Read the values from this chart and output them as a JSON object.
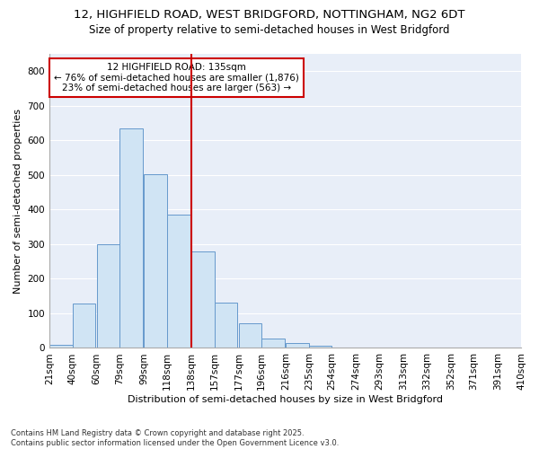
{
  "title_line1": "12, HIGHFIELD ROAD, WEST BRIDGFORD, NOTTINGHAM, NG2 6DT",
  "title_line2": "Size of property relative to semi-detached houses in West Bridgford",
  "xlabel": "Distribution of semi-detached houses by size in West Bridgford",
  "ylabel": "Number of semi-detached properties",
  "footnote": "Contains HM Land Registry data © Crown copyright and database right 2025.\nContains public sector information licensed under the Open Government Licence v3.0.",
  "bar_left_edges": [
    21,
    40,
    60,
    79,
    99,
    118,
    138,
    157,
    177,
    196,
    216,
    235,
    254,
    274,
    293,
    313,
    332,
    352,
    371,
    391
  ],
  "bar_heights": [
    10,
    128,
    300,
    635,
    503,
    385,
    278,
    130,
    72,
    28,
    13,
    7,
    0,
    0,
    0,
    0,
    0,
    0,
    0,
    0
  ],
  "bin_width": 19,
  "bar_color": "#d0e4f4",
  "bar_edge_color": "#6699cc",
  "x_tick_labels": [
    "21sqm",
    "40sqm",
    "60sqm",
    "79sqm",
    "99sqm",
    "118sqm",
    "138sqm",
    "157sqm",
    "177sqm",
    "196sqm",
    "216sqm",
    "235sqm",
    "254sqm",
    "274sqm",
    "293sqm",
    "313sqm",
    "332sqm",
    "352sqm",
    "371sqm",
    "391sqm",
    "410sqm"
  ],
  "x_tick_positions": [
    21,
    40,
    60,
    79,
    99,
    118,
    138,
    157,
    177,
    196,
    216,
    235,
    254,
    274,
    293,
    313,
    332,
    352,
    371,
    391,
    410
  ],
  "ylim": [
    0,
    850
  ],
  "yticks": [
    0,
    100,
    200,
    300,
    400,
    500,
    600,
    700,
    800
  ],
  "xlim_left": 21,
  "xlim_right": 410,
  "vline_x": 138,
  "vline_color": "#cc0000",
  "annotation_title": "12 HIGHFIELD ROAD: 135sqm",
  "annotation_line1": "← 76% of semi-detached houses are smaller (1,876)",
  "annotation_line2": "23% of semi-detached houses are larger (563) →",
  "annotation_box_facecolor": "#ffffff",
  "annotation_box_edgecolor": "#cc0000",
  "plot_bg_color": "#e8eef8",
  "fig_bg_color": "#ffffff",
  "grid_color": "#ffffff",
  "font_family": "DejaVu Sans",
  "title_fontsize": 9.5,
  "subtitle_fontsize": 8.5,
  "axis_label_fontsize": 8,
  "tick_fontsize": 7.5,
  "annotation_fontsize": 7.5,
  "footnote_fontsize": 6
}
